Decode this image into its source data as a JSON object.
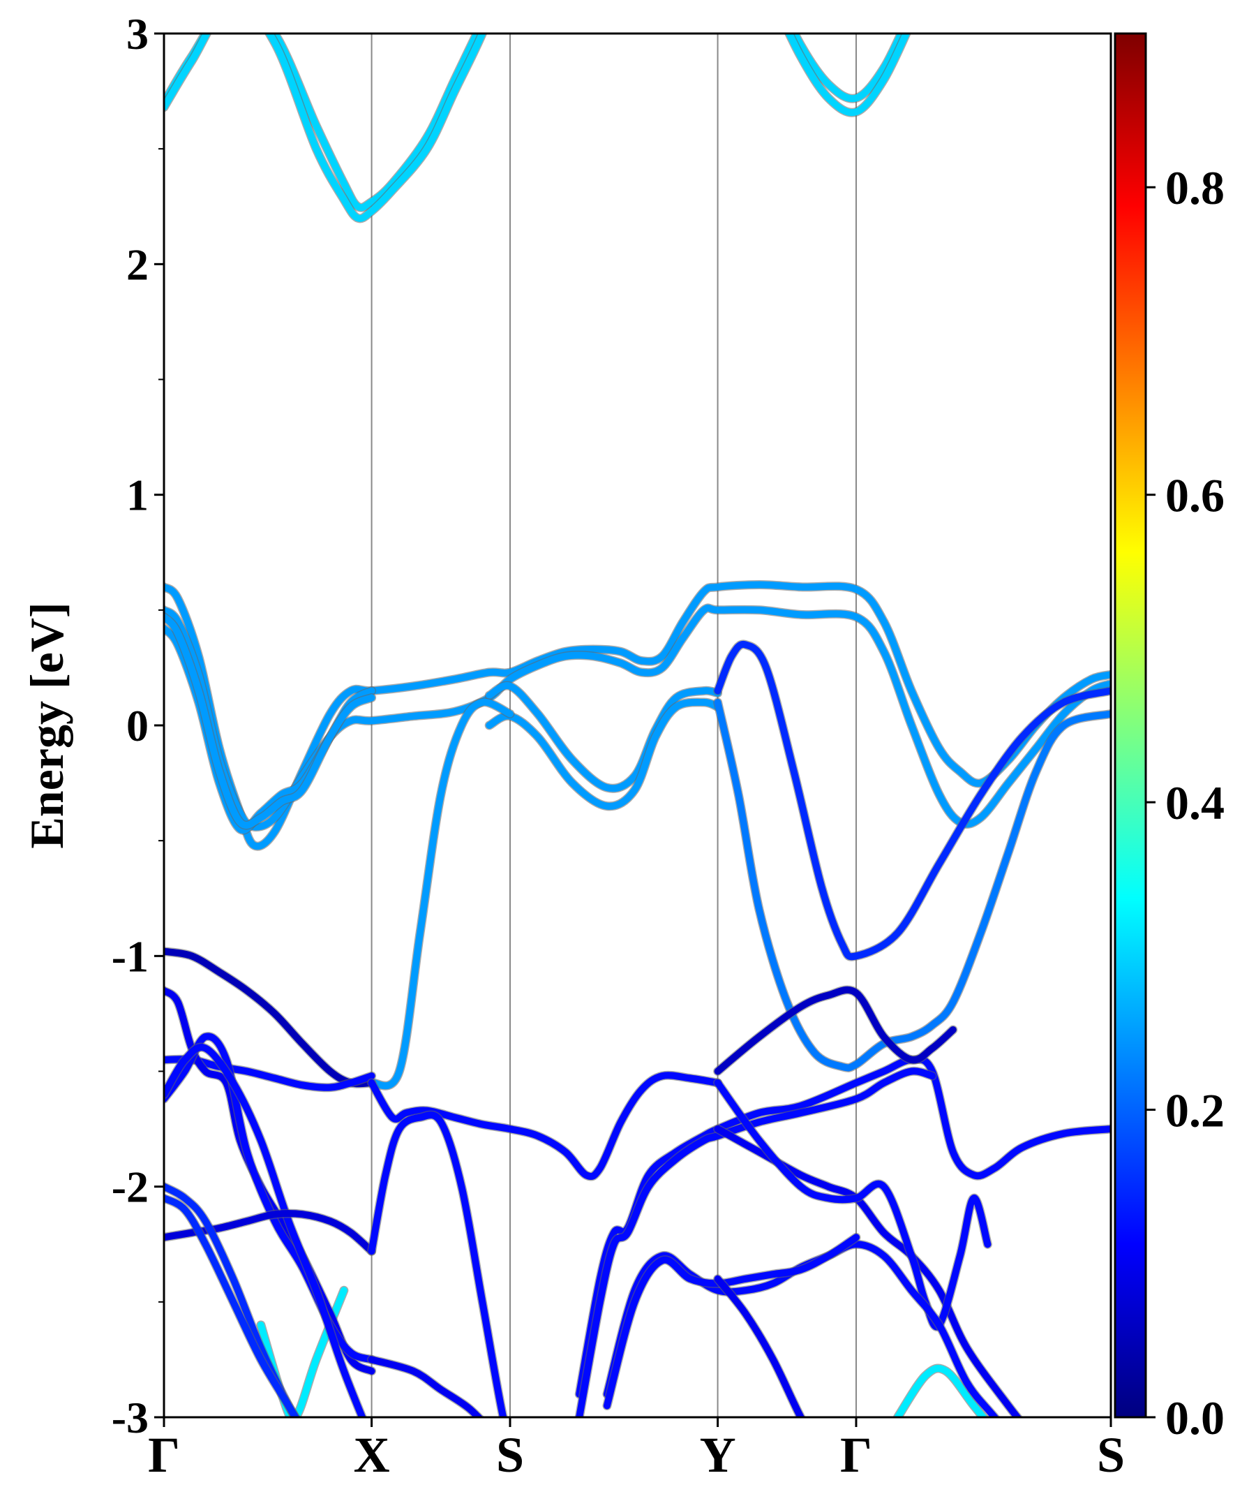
{
  "chart_data": {
    "type": "line",
    "title": "",
    "xlabel": "",
    "ylabel": "Energy [eV]",
    "ylim": [
      -3,
      3
    ],
    "xlim": [
      0,
      6.84
    ],
    "grid": false,
    "yticks": [
      -3,
      -2,
      -1,
      0,
      1,
      2,
      3
    ],
    "ytick_labels": [
      "-3",
      "-2",
      "-1",
      "0",
      "1",
      "2",
      "3"
    ],
    "kpoints": [
      {
        "label": "Γ",
        "x": 0.0
      },
      {
        "label": "X",
        "x": 1.5
      },
      {
        "label": "S",
        "x": 2.5
      },
      {
        "label": "Y",
        "x": 4.0
      },
      {
        "label": "Γ",
        "x": 5.0
      },
      {
        "label": "S",
        "x": 6.84
      }
    ],
    "colorbar": {
      "colormap": "jet",
      "range": [
        0.0,
        0.9
      ],
      "ticks": [
        0.0,
        0.2,
        0.4,
        0.6,
        0.8
      ],
      "tick_labels": [
        "0.0",
        "0.2",
        "0.4",
        "0.6",
        "0.8"
      ],
      "stops": [
        "#00007f",
        "#0000ff",
        "#007fff",
        "#00ffff",
        "#7fff7f",
        "#ffff00",
        "#ff7f00",
        "#ff0000",
        "#7f0000"
      ]
    },
    "series": [
      {
        "name": "cb1",
        "weight": 0.3,
        "x": [
          0.0,
          0.2,
          0.5,
          0.8,
          1.1,
          1.3,
          1.4,
          1.5,
          1.65,
          1.9,
          2.1,
          2.3,
          2.5
        ],
        "y": [
          2.7,
          2.9,
          3.15,
          3.0,
          2.6,
          2.35,
          2.25,
          2.27,
          2.35,
          2.55,
          2.8,
          3.05,
          3.3
        ]
      },
      {
        "name": "cb2",
        "weight": 0.3,
        "x": [
          0.0,
          0.2,
          0.5,
          0.8,
          1.1,
          1.3,
          1.4,
          1.5,
          1.65,
          1.9,
          2.1,
          2.3,
          2.5
        ],
        "y": [
          2.68,
          2.88,
          3.15,
          2.96,
          2.5,
          2.28,
          2.2,
          2.23,
          2.32,
          2.5,
          2.75,
          3.0,
          3.3
        ]
      },
      {
        "name": "cb3",
        "weight": 0.3,
        "x": [
          4.4,
          4.6,
          4.8,
          5.0,
          5.2,
          5.4
        ],
        "y": [
          3.2,
          2.95,
          2.78,
          2.72,
          2.85,
          3.1
        ]
      },
      {
        "name": "cb4",
        "weight": 0.3,
        "x": [
          4.4,
          4.6,
          4.8,
          5.0,
          5.2,
          5.4
        ],
        "y": [
          3.15,
          2.9,
          2.72,
          2.66,
          2.8,
          3.05
        ]
      },
      {
        "name": "cb5",
        "weight": 0.32,
        "x": [
          5.3,
          5.5,
          5.65,
          5.85,
          6.05
        ],
        "y": [
          -3.0,
          -2.82,
          -2.8,
          -2.95,
          -3.1
        ]
      },
      {
        "name": "cb6",
        "weight": 0.32,
        "x": [
          0.7,
          0.85,
          0.95,
          1.1,
          1.3
        ],
        "y": [
          -2.6,
          -2.9,
          -3.0,
          -2.75,
          -2.45
        ]
      },
      {
        "name": "v1",
        "weight": 0.25,
        "x": [
          0.0,
          0.1,
          0.25,
          0.4,
          0.55,
          0.65,
          0.8,
          1.0,
          1.2,
          1.35,
          1.5,
          1.8,
          2.1,
          2.35,
          2.5,
          2.7,
          2.9,
          3.1,
          3.3,
          3.45,
          3.6,
          3.75,
          3.9,
          4.0,
          4.3,
          4.6,
          5.0,
          5.2,
          5.4,
          5.6,
          5.75,
          5.9,
          6.1,
          6.3,
          6.5,
          6.7,
          6.84
        ],
        "y": [
          0.6,
          0.55,
          0.3,
          -0.1,
          -0.38,
          -0.52,
          -0.46,
          -0.2,
          0.05,
          0.15,
          0.15,
          0.17,
          0.2,
          0.23,
          0.23,
          0.28,
          0.32,
          0.33,
          0.32,
          0.28,
          0.3,
          0.45,
          0.58,
          0.6,
          0.61,
          0.6,
          0.59,
          0.45,
          0.15,
          -0.1,
          -0.2,
          -0.25,
          -0.15,
          0.0,
          0.12,
          0.2,
          0.22
        ]
      },
      {
        "name": "v2",
        "weight": 0.25,
        "x": [
          0.0,
          0.1,
          0.25,
          0.4,
          0.55,
          0.65,
          0.8,
          1.0,
          1.2,
          1.35,
          1.5,
          1.8,
          2.1,
          2.35,
          2.5,
          2.7,
          2.9,
          3.1,
          3.3,
          3.45,
          3.6,
          3.75,
          3.9,
          4.0,
          4.3,
          4.6,
          5.0,
          5.2,
          5.4,
          5.6,
          5.75,
          5.9,
          6.1,
          6.3,
          6.5,
          6.7,
          6.84
        ],
        "y": [
          0.5,
          0.45,
          0.22,
          -0.15,
          -0.38,
          -0.44,
          -0.4,
          -0.22,
          -0.05,
          0.02,
          0.02,
          0.04,
          0.06,
          0.12,
          0.2,
          0.26,
          0.3,
          0.3,
          0.27,
          0.23,
          0.25,
          0.38,
          0.5,
          0.5,
          0.5,
          0.48,
          0.47,
          0.32,
          0.0,
          -0.3,
          -0.42,
          -0.4,
          -0.25,
          -0.1,
          0.05,
          0.15,
          0.18
        ]
      },
      {
        "name": "v3",
        "weight": 0.25,
        "x": [
          0.0,
          0.1,
          0.25,
          0.4,
          0.55,
          0.7,
          0.85,
          1.0,
          1.2,
          1.35,
          1.5
        ],
        "y": [
          0.42,
          0.35,
          0.1,
          -0.25,
          -0.45,
          -0.38,
          -0.3,
          -0.25,
          -0.05,
          0.1,
          0.15
        ]
      },
      {
        "name": "v4",
        "weight": 0.25,
        "x": [
          0.0,
          0.1,
          0.25,
          0.4,
          0.55,
          0.7,
          0.85,
          1.0,
          1.2,
          1.35,
          1.5
        ],
        "y": [
          0.47,
          0.4,
          0.15,
          -0.2,
          -0.42,
          -0.4,
          -0.33,
          -0.28,
          -0.05,
          0.08,
          0.12
        ]
      },
      {
        "name": "v5",
        "weight": 0.25,
        "x": [
          2.35,
          2.5,
          2.7,
          2.95,
          3.2,
          3.4,
          3.55,
          3.7,
          3.9,
          4.0
        ],
        "y": [
          0.13,
          0.17,
          0.05,
          -0.15,
          -0.27,
          -0.22,
          -0.02,
          0.12,
          0.15,
          0.14
        ]
      },
      {
        "name": "v6",
        "weight": 0.25,
        "x": [
          2.35,
          2.5,
          2.7,
          2.95,
          3.2,
          3.4,
          3.55,
          3.7,
          3.9,
          4.0
        ],
        "y": [
          0.0,
          0.04,
          -0.05,
          -0.25,
          -0.35,
          -0.28,
          -0.05,
          0.08,
          0.1,
          0.08
        ]
      },
      {
        "name": "v7",
        "weight": 0.25,
        "x": [
          1.5,
          1.7,
          1.85,
          2.0,
          2.15,
          2.3,
          2.5
        ],
        "y": [
          -1.55,
          -1.5,
          -0.9,
          -0.3,
          0.0,
          0.1,
          0.05
        ]
      },
      {
        "name": "v8",
        "weight": 0.15,
        "x": [
          4.0,
          4.1,
          4.2,
          4.35,
          4.55,
          4.75,
          4.9,
          5.0,
          5.3,
          5.6,
          5.9,
          6.2,
          6.5,
          6.84
        ],
        "y": [
          0.15,
          0.3,
          0.35,
          0.25,
          -0.2,
          -0.7,
          -0.95,
          -1.0,
          -0.9,
          -0.6,
          -0.3,
          -0.05,
          0.1,
          0.15
        ]
      },
      {
        "name": "v9",
        "weight": 0.22,
        "x": [
          4.0,
          4.15,
          4.3,
          4.5,
          4.7,
          4.9,
          5.0,
          5.2,
          5.4,
          5.55,
          5.7,
          5.9,
          6.1,
          6.3,
          6.5,
          6.84
        ],
        "y": [
          0.1,
          -0.3,
          -0.8,
          -1.2,
          -1.42,
          -1.48,
          -1.47,
          -1.38,
          -1.35,
          -1.3,
          -1.2,
          -0.9,
          -0.55,
          -0.2,
          0.0,
          0.05
        ]
      },
      {
        "name": "d1",
        "weight": 0.05,
        "x": [
          0.0,
          0.2,
          0.4,
          0.6,
          0.8,
          1.0,
          1.2,
          1.35,
          1.5
        ],
        "y": [
          -0.98,
          -1.0,
          -1.07,
          -1.15,
          -1.25,
          -1.38,
          -1.5,
          -1.55,
          -1.55
        ]
      },
      {
        "name": "d2",
        "weight": 0.12,
        "x": [
          0.0,
          0.2,
          0.4,
          0.6,
          0.8,
          1.0,
          1.2,
          1.35,
          1.5
        ],
        "y": [
          -1.45,
          -1.45,
          -1.48,
          -1.5,
          -1.53,
          -1.56,
          -1.57,
          -1.55,
          -1.52
        ]
      },
      {
        "name": "d3",
        "weight": 0.12,
        "x": [
          1.5,
          1.65,
          1.75,
          1.9,
          2.1,
          2.3,
          2.5,
          2.7,
          2.9,
          3.05,
          3.15,
          3.3,
          3.45,
          3.6,
          3.8,
          4.0
        ],
        "y": [
          -1.55,
          -1.7,
          -1.68,
          -1.67,
          -1.7,
          -1.73,
          -1.75,
          -1.78,
          -1.85,
          -1.95,
          -1.92,
          -1.72,
          -1.58,
          -1.52,
          -1.53,
          -1.55
        ]
      },
      {
        "name": "d4",
        "weight": 0.1,
        "x": [
          0.0,
          0.1,
          0.2,
          0.3,
          0.45,
          0.55,
          0.7,
          0.85,
          1.0,
          1.2,
          1.35,
          1.5
        ],
        "y": [
          -1.15,
          -1.2,
          -1.4,
          -1.5,
          -1.55,
          -1.8,
          -2.0,
          -2.15,
          -2.3,
          -2.55,
          -2.75,
          -2.8
        ]
      },
      {
        "name": "d5",
        "weight": 0.12,
        "x": [
          0.0,
          0.15,
          0.3,
          0.45,
          0.6,
          0.8,
          1.0,
          1.2,
          1.35,
          1.5
        ],
        "y": [
          -1.62,
          -1.5,
          -1.35,
          -1.45,
          -1.85,
          -2.15,
          -2.35,
          -2.6,
          -2.72,
          -2.75
        ]
      },
      {
        "name": "d6",
        "weight": 0.12,
        "x": [
          0.0,
          0.15,
          0.3,
          0.5,
          0.7,
          0.9,
          1.1,
          1.3,
          1.5
        ],
        "y": [
          -1.6,
          -1.45,
          -1.4,
          -1.55,
          -1.8,
          -2.15,
          -2.45,
          -2.8,
          -3.1
        ]
      },
      {
        "name": "d7",
        "weight": 0.08,
        "x": [
          0.0,
          0.2,
          0.4,
          0.6,
          0.8,
          1.0,
          1.2,
          1.35,
          1.5
        ],
        "y": [
          -2.22,
          -2.2,
          -2.18,
          -2.15,
          -2.12,
          -2.12,
          -2.15,
          -2.2,
          -2.28
        ]
      },
      {
        "name": "d8",
        "weight": 0.15,
        "x": [
          0.0,
          0.15,
          0.3,
          0.5,
          0.7,
          0.9,
          1.0
        ],
        "y": [
          -2.0,
          -2.05,
          -2.15,
          -2.4,
          -2.7,
          -2.95,
          -3.05
        ]
      },
      {
        "name": "d9",
        "weight": 0.15,
        "x": [
          0.0,
          0.15,
          0.3,
          0.5,
          0.7,
          0.9,
          1.05
        ],
        "y": [
          -2.05,
          -2.1,
          -2.25,
          -2.5,
          -2.75,
          -2.95,
          -3.1
        ]
      },
      {
        "name": "d10",
        "weight": 0.12,
        "x": [
          1.5,
          1.6,
          1.7,
          1.85,
          2.0,
          2.15,
          2.3,
          2.45,
          2.55
        ],
        "y": [
          -2.28,
          -1.95,
          -1.75,
          -1.7,
          -1.72,
          -2.0,
          -2.5,
          -3.0,
          -3.2
        ]
      },
      {
        "name": "d11",
        "weight": 0.1,
        "x": [
          1.5,
          1.8,
          2.0,
          2.2,
          2.35
        ],
        "y": [
          -2.75,
          -2.8,
          -2.88,
          -2.96,
          -3.05
        ]
      },
      {
        "name": "d12",
        "weight": 0.12,
        "x": [
          3.0,
          3.15,
          3.25,
          3.35,
          3.5,
          3.7,
          3.9,
          4.0,
          4.3,
          4.6,
          5.0,
          5.2,
          5.4,
          5.55,
          5.7,
          5.85,
          6.0,
          6.2,
          6.5,
          6.84
        ],
        "y": [
          -2.9,
          -2.4,
          -2.2,
          -2.18,
          -1.95,
          -1.85,
          -1.78,
          -1.75,
          -1.68,
          -1.65,
          -1.55,
          -1.5,
          -1.45,
          -1.5,
          -1.85,
          -1.95,
          -1.92,
          -1.83,
          -1.77,
          -1.75
        ]
      },
      {
        "name": "d13",
        "weight": 0.12,
        "x": [
          3.0,
          3.15,
          3.25,
          3.35,
          3.5,
          3.7,
          3.9,
          4.0,
          4.3,
          4.6,
          5.0,
          5.2,
          5.4,
          5.55
        ],
        "y": [
          -3.0,
          -2.5,
          -2.25,
          -2.2,
          -2.0,
          -1.88,
          -1.8,
          -1.78,
          -1.72,
          -1.68,
          -1.62,
          -1.55,
          -1.5,
          -1.52
        ]
      },
      {
        "name": "d14",
        "weight": 0.06,
        "x": [
          4.0,
          4.3,
          4.6,
          4.8,
          5.0,
          5.2,
          5.4,
          5.55,
          5.7
        ],
        "y": [
          -1.5,
          -1.35,
          -1.22,
          -1.17,
          -1.16,
          -1.35,
          -1.45,
          -1.4,
          -1.32
        ]
      },
      {
        "name": "d15",
        "weight": 0.1,
        "x": [
          4.0,
          4.3,
          4.6,
          4.8,
          5.0,
          5.2,
          5.4,
          5.6,
          5.8,
          6.1,
          6.3,
          6.5,
          6.7,
          6.84
        ],
        "y": [
          -1.75,
          -1.85,
          -1.95,
          -2.0,
          -2.05,
          -2.2,
          -2.3,
          -2.45,
          -2.7,
          -2.95,
          -3.1,
          -3.25,
          -3.3,
          -3.35
        ]
      },
      {
        "name": "d16",
        "weight": 0.12,
        "x": [
          4.0,
          4.3,
          4.6,
          4.8,
          5.0,
          5.2,
          5.4,
          5.5,
          5.6,
          5.75,
          5.85,
          5.95
        ],
        "y": [
          -1.55,
          -1.8,
          -2.0,
          -2.05,
          -2.05,
          -2.0,
          -2.3,
          -2.5,
          -2.6,
          -2.3,
          -2.05,
          -2.25
        ]
      },
      {
        "name": "d17",
        "weight": 0.12,
        "x": [
          3.2,
          3.4,
          3.6,
          3.8,
          4.0,
          4.2,
          4.4,
          4.6,
          4.8,
          5.0,
          5.2,
          5.4,
          5.6,
          5.8,
          6.0,
          6.2,
          6.4,
          6.6,
          6.84
        ],
        "y": [
          -2.9,
          -2.45,
          -2.3,
          -2.38,
          -2.45,
          -2.45,
          -2.42,
          -2.35,
          -2.3,
          -2.25,
          -2.3,
          -2.45,
          -2.6,
          -2.85,
          -3.0,
          -3.15,
          -3.2,
          -3.25,
          -3.3
        ]
      },
      {
        "name": "d18",
        "weight": 0.12,
        "x": [
          3.2,
          3.4,
          3.6,
          3.8,
          4.0,
          4.2,
          4.4,
          4.6,
          4.8,
          5.0
        ],
        "y": [
          -2.95,
          -2.5,
          -2.32,
          -2.4,
          -2.42,
          -2.4,
          -2.38,
          -2.36,
          -2.3,
          -2.22
        ]
      },
      {
        "name": "d19",
        "weight": 0.1,
        "x": [
          4.0,
          4.2,
          4.4,
          4.6,
          4.75
        ],
        "y": [
          -2.4,
          -2.55,
          -2.75,
          -3.0,
          -3.15
        ]
      }
    ]
  }
}
